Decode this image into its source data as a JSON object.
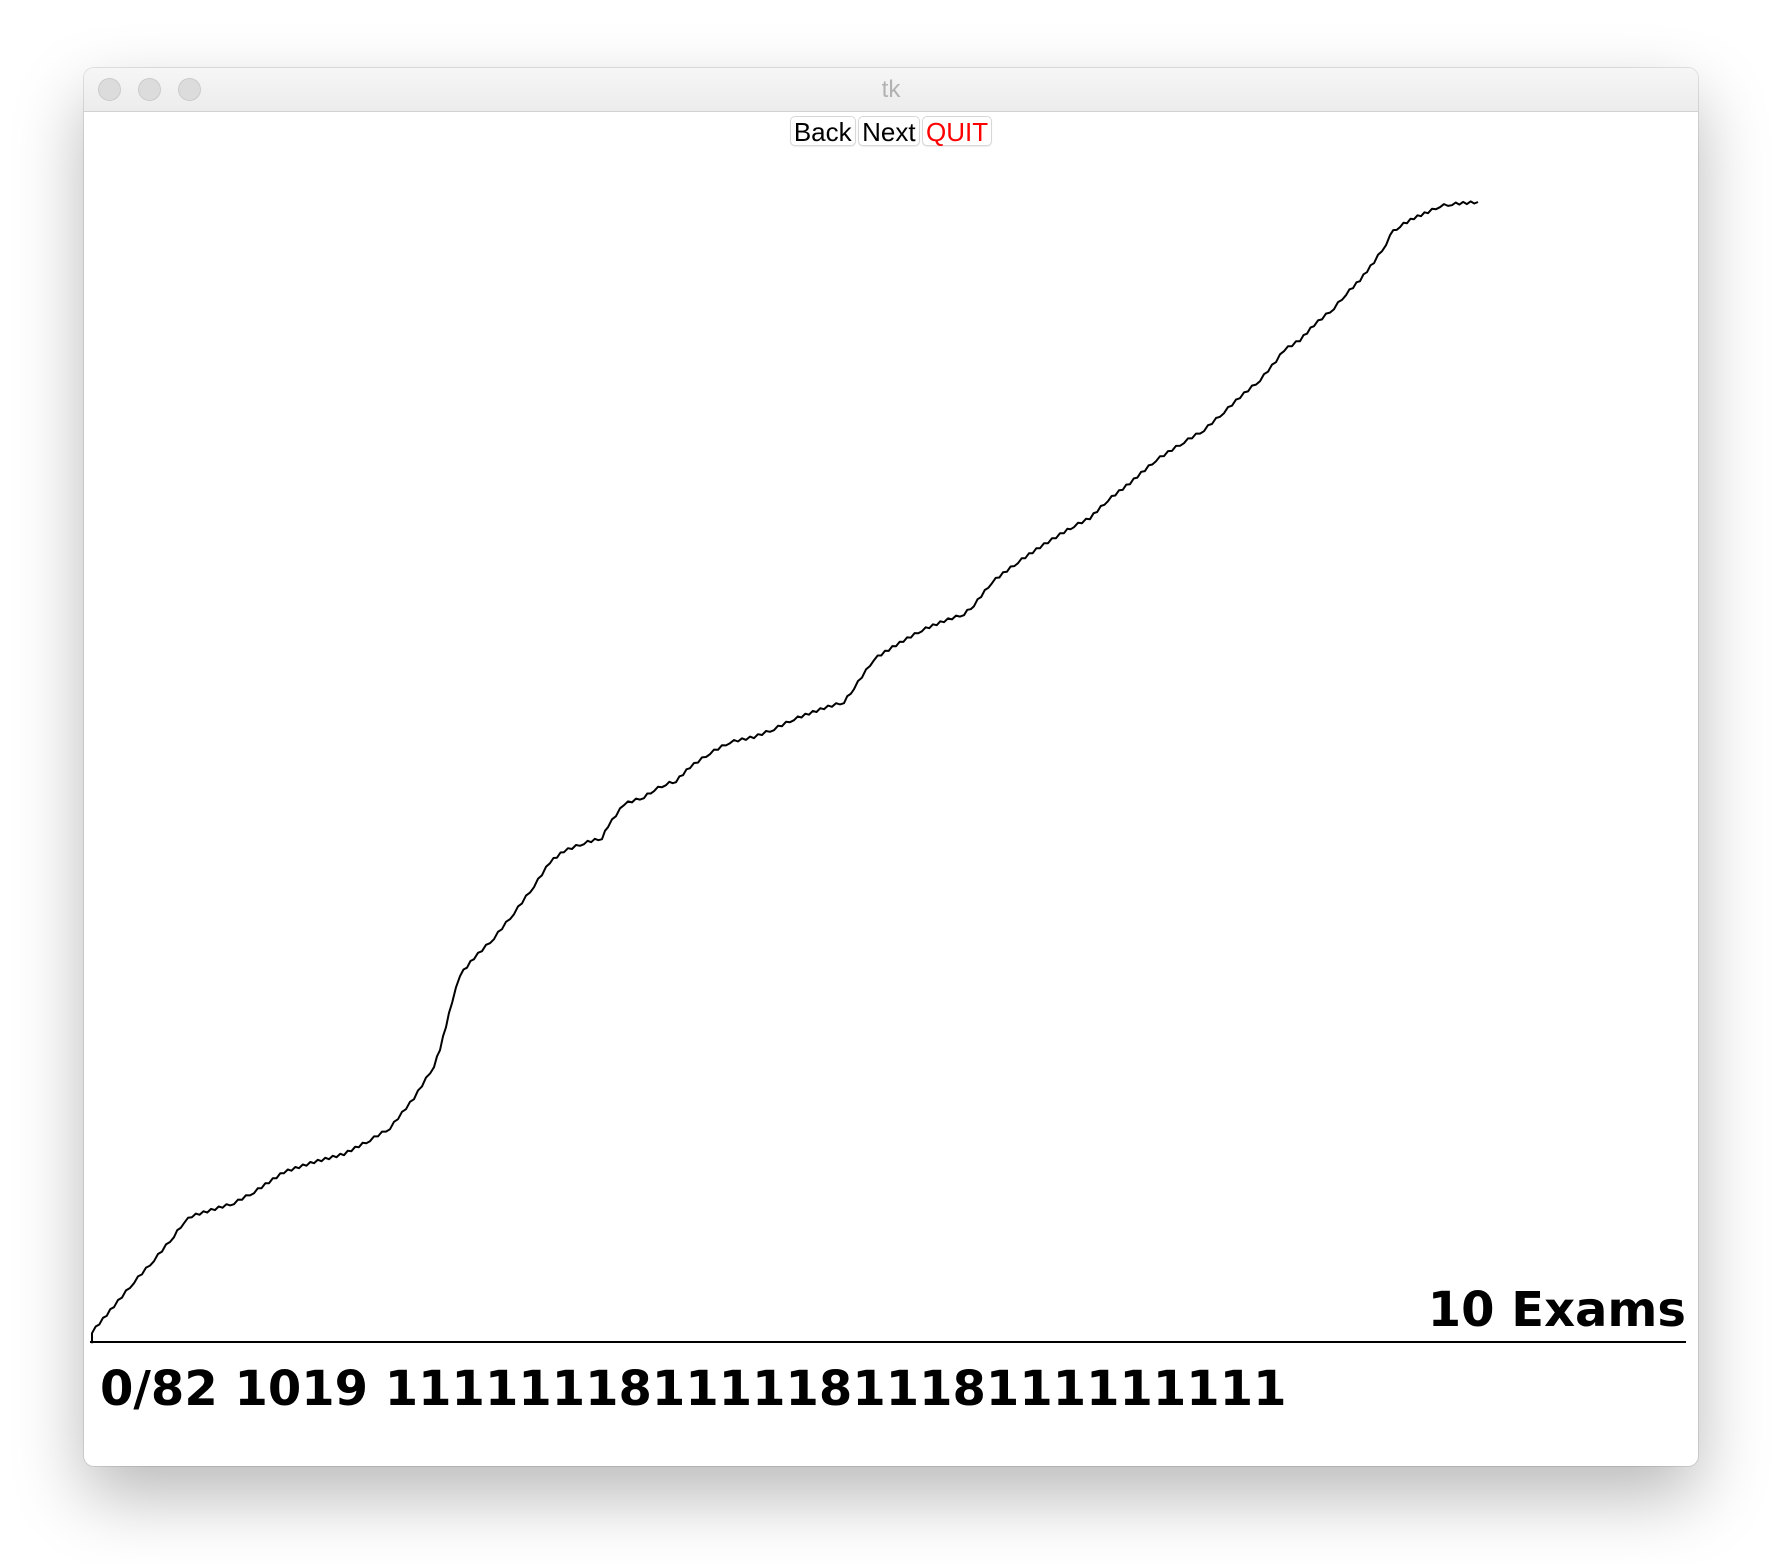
{
  "window": {
    "title": "tk"
  },
  "toolbar": {
    "back_label": "Back",
    "next_label": "Next",
    "quit_label": "QUIT"
  },
  "plot": {
    "exam_count_label": "10 Exams"
  },
  "status": {
    "line": "0/82 1019 111111181111181118111111111"
  }
}
